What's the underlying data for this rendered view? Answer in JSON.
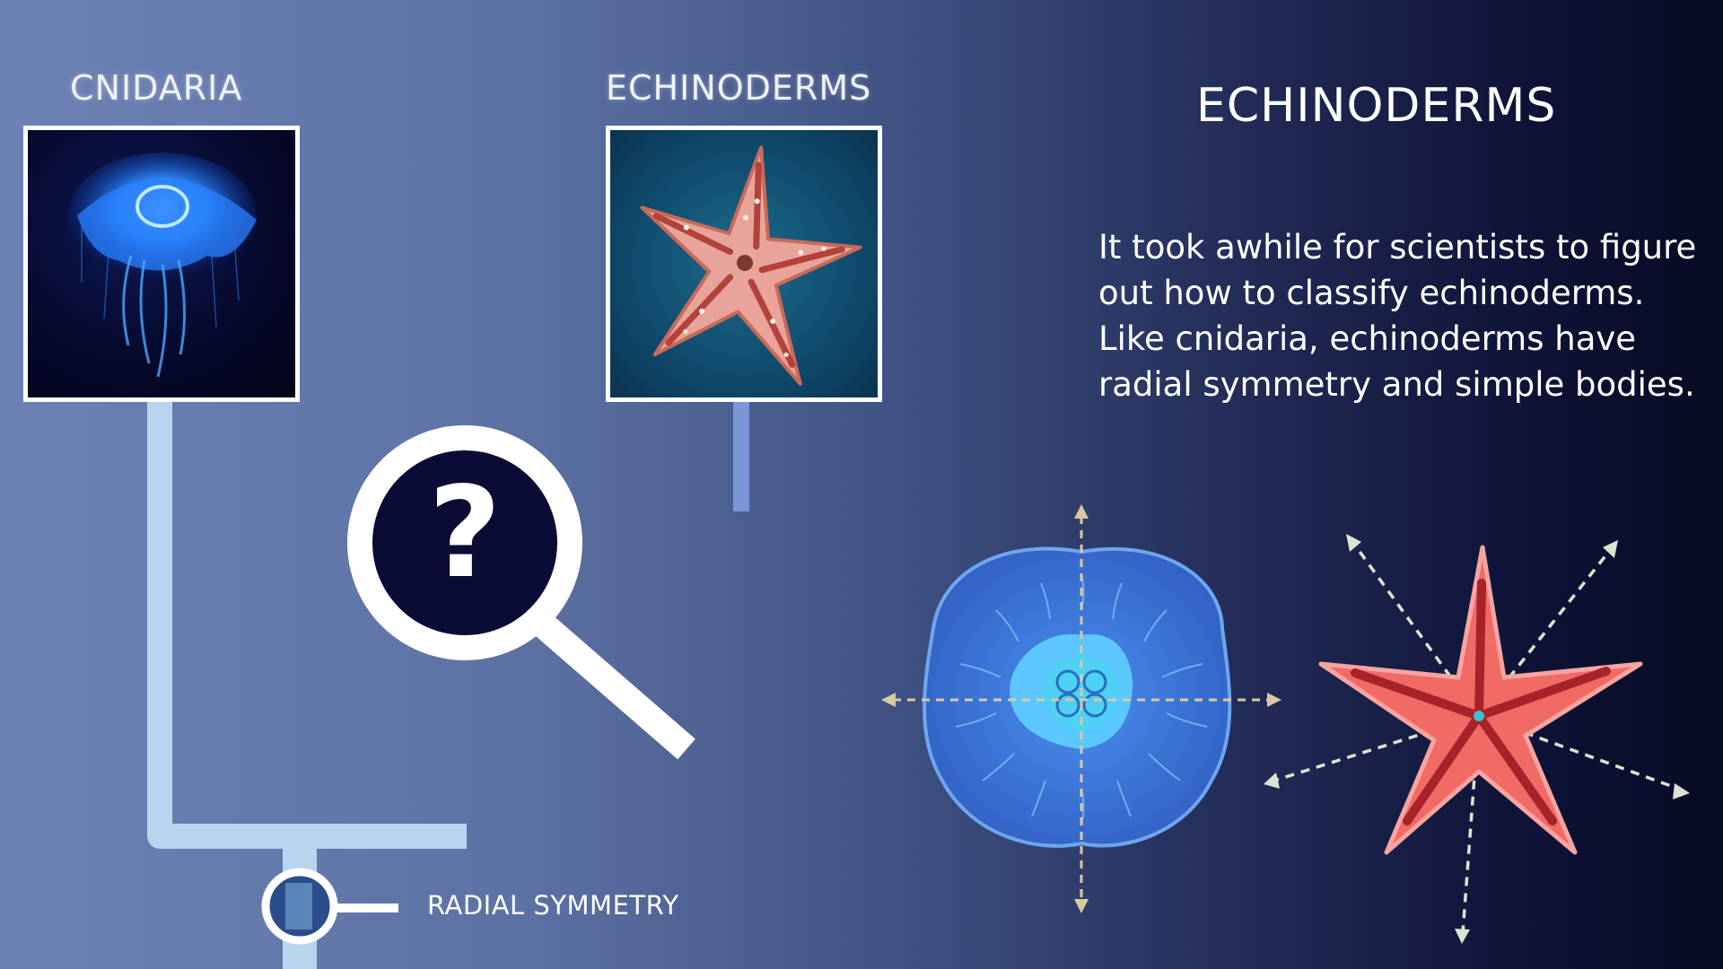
{
  "tree": {
    "cnidaria_label": "CNIDARIA",
    "echinoderms_label": "ECHINODERMS",
    "node_label": "RADIAL SYMMETRY",
    "unknown_symbol": "?"
  },
  "panel": {
    "title": "ECHINODERMS",
    "description_lines": [
      "It took awhile for scientists to figure",
      "out how to classify echinoderms.",
      "Like cnidaria, echinoderms have",
      "radial symmetry and simple bodies."
    ]
  },
  "icons": {
    "jellyfish_photo": "jellyfish-photo",
    "starfish_photo": "starfish-photo",
    "magnifier": "magnifying-glass-icon",
    "jellyfish_diagram": "jellyfish-symmetry-diagram",
    "starfish_diagram": "starfish-symmetry-diagram"
  },
  "colors": {
    "tree_line": "#b7d6ee",
    "branch_line": "#7c95d6",
    "magnifier_lens": "#0a0c35",
    "jelly_body": "#3f78d6",
    "star_body": "#f06a66",
    "axis_dash": "#d9c9a0"
  }
}
